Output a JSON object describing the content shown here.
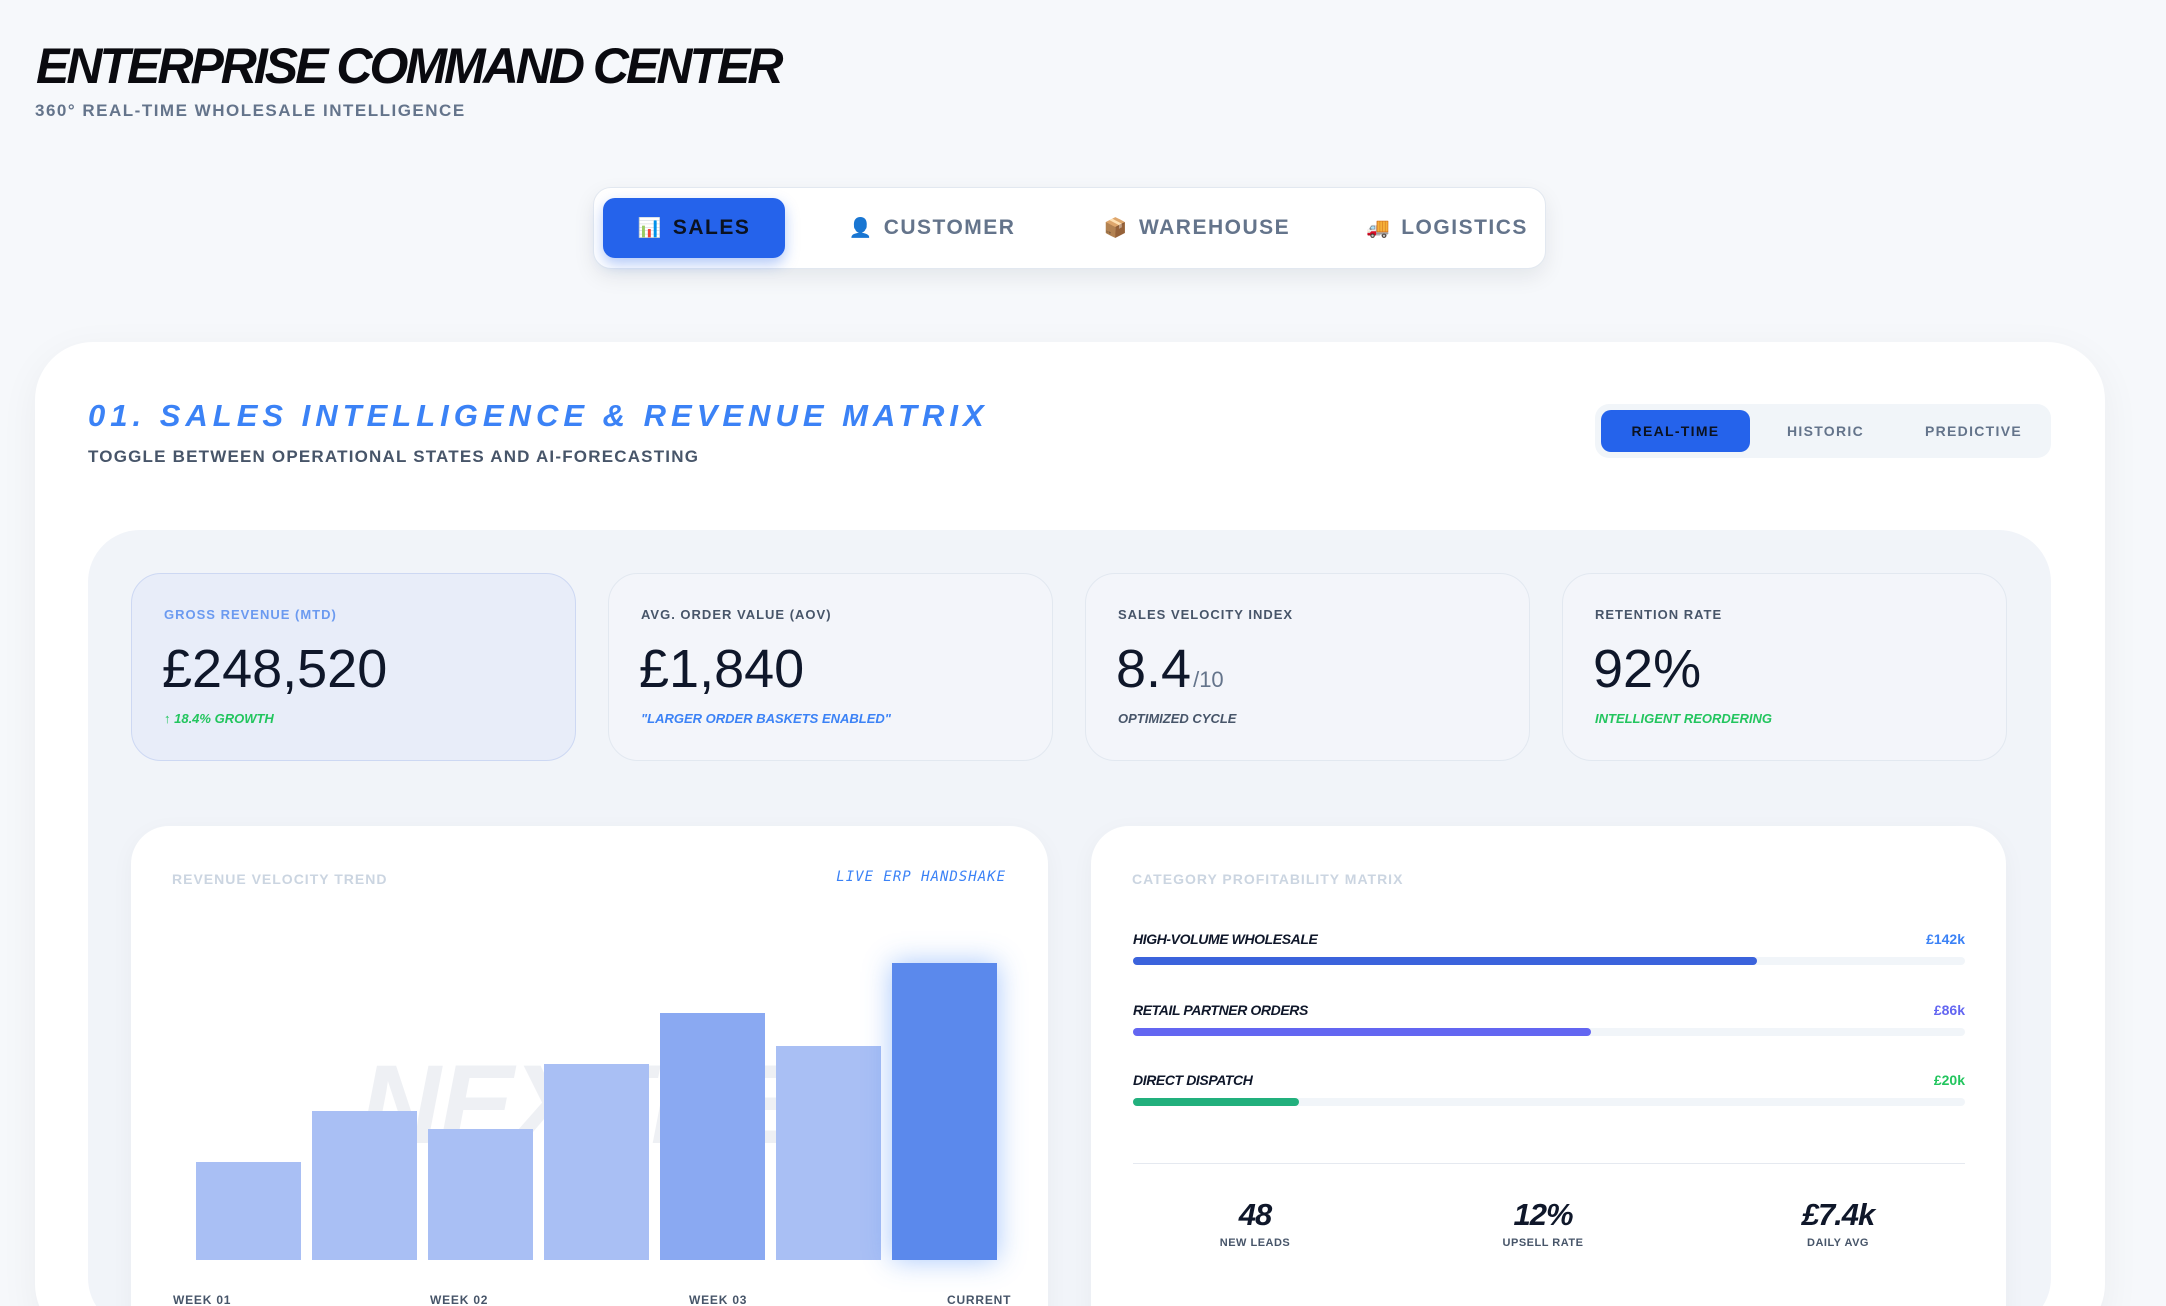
{
  "header": {
    "title": "ENTERPRISE COMMAND CENTER",
    "subtitle": "360° REAL-TIME WHOLESALE INTELLIGENCE"
  },
  "tabs": [
    {
      "label": "SALES",
      "icon": "bar-chart-icon",
      "glyph": "📊",
      "active": true
    },
    {
      "label": "CUSTOMER",
      "icon": "user-icon",
      "glyph": "👤",
      "active": false
    },
    {
      "label": "WAREHOUSE",
      "icon": "package-icon",
      "glyph": "📦",
      "active": false
    },
    {
      "label": "LOGISTICS",
      "icon": "truck-icon",
      "glyph": "🚚",
      "active": false
    }
  ],
  "section": {
    "title": "01. SALES INTELLIGENCE & REVENUE MATRIX",
    "subtitle": "TOGGLE BETWEEN OPERATIONAL STATES AND AI-FORECASTING",
    "modes": [
      "REAL-TIME",
      "HISTORIC",
      "PREDICTIVE"
    ],
    "active_mode": "REAL-TIME"
  },
  "kpis": [
    {
      "label": "GROSS REVENUE (MTD)",
      "value": "£248,520",
      "suffix": "",
      "note": "↑ 18.4% GROWTH",
      "note_color": "#22c55e"
    },
    {
      "label": "AVG. ORDER VALUE (AOV)",
      "value": "£1,840",
      "suffix": "",
      "note": "\"LARGER ORDER BASKETS ENABLED\"",
      "note_color": "#3b82f6"
    },
    {
      "label": "SALES VELOCITY INDEX",
      "value": "8.4",
      "suffix": "/10",
      "note": "OPTIMIZED CYCLE",
      "note_color": "#475569"
    },
    {
      "label": "RETENTION RATE",
      "value": "92%",
      "suffix": "",
      "note": "INTELLIGENT REORDERING",
      "note_color": "#22c55e"
    }
  ],
  "revenue_chart": {
    "title": "REVENUE VELOCITY TREND",
    "tag": "LIVE ERP HANDSHAKE",
    "watermark": "NEXTBEE",
    "x_labels": [
      "WEEK 01",
      "WEEK 02",
      "WEEK 03",
      "CURRENT"
    ]
  },
  "chart_data": {
    "type": "bar",
    "title": "REVENUE VELOCITY TREND",
    "values": [
      33,
      50,
      44,
      66,
      83,
      72,
      100
    ],
    "ylim": [
      0,
      100
    ],
    "x_tick_labels": [
      "WEEK 01",
      "WEEK 02",
      "WEEK 03",
      "CURRENT"
    ]
  },
  "category_matrix": {
    "title": "CATEGORY PROFITABILITY MATRIX",
    "rows": [
      {
        "name": "HIGH-VOLUME WHOLESALE",
        "value": "£142k",
        "share": 0.75,
        "color": "#3b63dc",
        "value_color": "#3b82f6"
      },
      {
        "name": "RETAIL PARTNER ORDERS",
        "value": "£86k",
        "share": 0.55,
        "color": "#6366f1",
        "value_color": "#6366f1"
      },
      {
        "name": "DIRECT DISPATCH",
        "value": "£20k",
        "share": 0.2,
        "color": "#22b07d",
        "value_color": "#22c55e"
      }
    ],
    "stats": [
      {
        "value": "48",
        "label": "NEW LEADS"
      },
      {
        "value": "12%",
        "label": "UPSELL RATE"
      },
      {
        "value": "£7.4k",
        "label": "DAILY AVG"
      }
    ]
  }
}
